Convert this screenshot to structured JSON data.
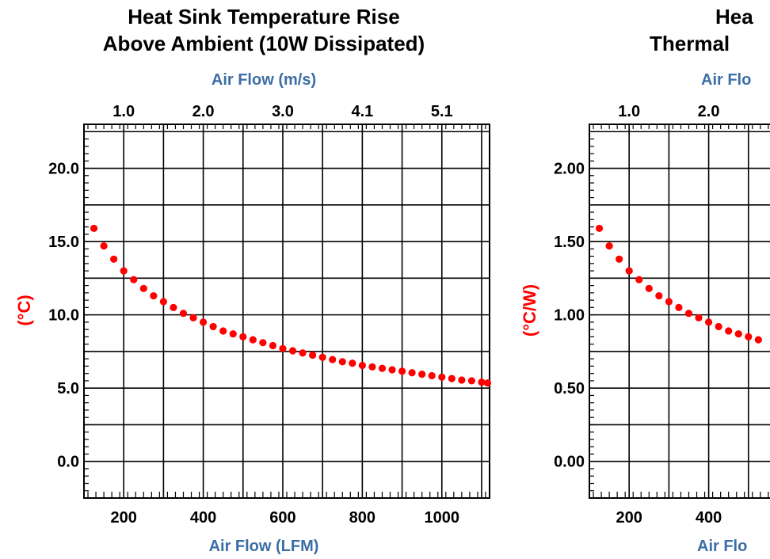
{
  "chart_data": [
    {
      "type": "scatter",
      "title": [
        "Heat Sink Temperature Rise",
        "Above Ambient (10W Dissipated)"
      ],
      "xlabel": "Air Flow (LFM)",
      "x2label": "Air Flow (m/s)",
      "ylabel": "(°C)",
      "xlim": [
        100,
        1120
      ],
      "ylim": [
        -2.5,
        23
      ],
      "xticks": [
        200,
        400,
        600,
        800,
        1000
      ],
      "xtick_labels": [
        "200",
        "400",
        "600",
        "800",
        "1000"
      ],
      "x2ticks": [
        200,
        400,
        600,
        800,
        1000
      ],
      "x2tick_labels": [
        "1.0",
        "2.0",
        "3.0",
        "4.1",
        "5.1"
      ],
      "yticks": [
        0,
        5,
        10,
        15,
        20
      ],
      "ytick_labels": [
        "0.0",
        "5.0",
        "10.0",
        "15.0",
        "20.0"
      ],
      "grid": true,
      "marker_color": "#ff0000",
      "series": [
        {
          "x": [
            125,
            150,
            175,
            200,
            225,
            250,
            275,
            300,
            325,
            350,
            375,
            400,
            425,
            450,
            475,
            500,
            525,
            550,
            575,
            600,
            625,
            650,
            675,
            700,
            725,
            750,
            775,
            800,
            825,
            850,
            875,
            900,
            925,
            950,
            975,
            1000,
            1025,
            1050,
            1075,
            1100,
            1115
          ],
          "y": [
            15.9,
            14.7,
            13.8,
            13.0,
            12.4,
            11.8,
            11.3,
            10.9,
            10.5,
            10.1,
            9.8,
            9.5,
            9.2,
            8.9,
            8.7,
            8.5,
            8.3,
            8.1,
            7.9,
            7.7,
            7.55,
            7.4,
            7.25,
            7.1,
            6.95,
            6.8,
            6.7,
            6.55,
            6.45,
            6.35,
            6.25,
            6.15,
            6.05,
            5.95,
            5.85,
            5.75,
            5.65,
            5.55,
            5.5,
            5.4,
            5.35
          ]
        }
      ]
    },
    {
      "type": "scatter",
      "title": [
        "Hea",
        "Thermal"
      ],
      "xlabel": "Air Flo",
      "x2label": "Air Flo",
      "ylabel": "(°C/W)",
      "xlim": [
        100,
        1120
      ],
      "ylim": [
        -0.25,
        2.3
      ],
      "xticks": [
        200,
        400
      ],
      "xtick_labels": [
        "200",
        "400"
      ],
      "x2ticks": [
        200,
        400
      ],
      "x2tick_labels": [
        "1.0",
        "2.0"
      ],
      "yticks": [
        0,
        0.5,
        1.0,
        1.5,
        2.0
      ],
      "ytick_labels": [
        "0.00",
        "0.50",
        "1.00",
        "1.50",
        "2.00"
      ],
      "grid": true,
      "marker_color": "#ff0000",
      "series": [
        {
          "x": [
            125,
            150,
            175,
            200,
            225,
            250,
            275,
            300,
            325,
            350,
            375,
            400,
            425,
            450,
            475,
            500,
            525
          ],
          "y": [
            1.59,
            1.47,
            1.38,
            1.3,
            1.24,
            1.18,
            1.13,
            1.09,
            1.05,
            1.01,
            0.98,
            0.95,
            0.92,
            0.89,
            0.87,
            0.85,
            0.83
          ]
        }
      ]
    }
  ]
}
